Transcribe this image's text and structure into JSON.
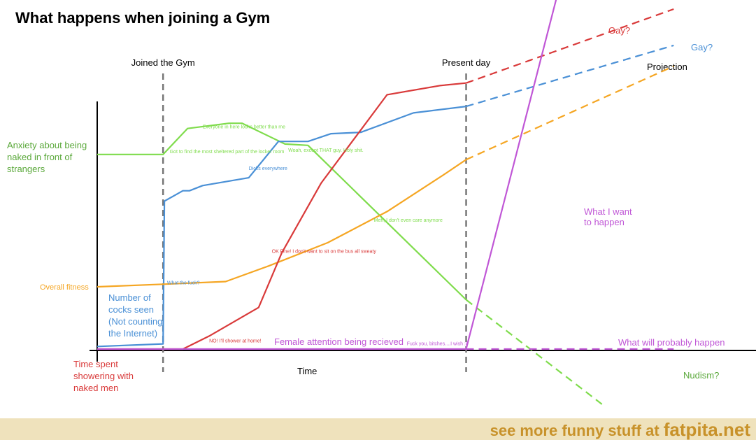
{
  "chart_data": {
    "type": "line",
    "title": "What happens when joining a Gym",
    "xlabel": "Time",
    "xlim": [
      0,
      10
    ],
    "ylim": [
      0,
      10
    ],
    "markers": [
      {
        "x": 1,
        "label": "Joined the Gym"
      },
      {
        "x": 5.6,
        "label": "Present day"
      }
    ],
    "projection_label": "Projection",
    "series": [
      {
        "name": "Anxiety about being naked in front of strangers",
        "color": "#7fdc4c",
        "points": [
          [
            0,
            7.5
          ],
          [
            1,
            7.5
          ],
          [
            1.37,
            8.5
          ],
          [
            2,
            8.7
          ],
          [
            2.2,
            8.7
          ],
          [
            2.85,
            7.9
          ],
          [
            3.2,
            7.85
          ],
          [
            5.6,
            1.9
          ]
        ],
        "projection": [
          [
            5.6,
            1.9
          ],
          [
            7.7,
            -2.2
          ]
        ],
        "projection_label": "Nudism?",
        "annotations": [
          {
            "x": 1.1,
            "y": 7.55,
            "text": "Got to find the most sheltered part of the locker room"
          },
          {
            "x": 1.6,
            "y": 8.5,
            "text": "Everyone in here looks better than me"
          },
          {
            "x": 2.9,
            "y": 7.6,
            "text": "Woah, except THAT guy. Holy shit."
          },
          {
            "x": 4.2,
            "y": 4.9,
            "text": "Meh, I don't even care anymore"
          }
        ]
      },
      {
        "name": "Number of cocks seen (Not counting the Internet)",
        "color": "#4a90d6",
        "points": [
          [
            0,
            0.1
          ],
          [
            1,
            0.2
          ],
          [
            1.02,
            5.7
          ],
          [
            1.3,
            6.1
          ],
          [
            1.4,
            6.1
          ],
          [
            1.6,
            6.3
          ],
          [
            2.3,
            6.6
          ],
          [
            2.75,
            8.0
          ],
          [
            3.2,
            8.0
          ],
          [
            3.55,
            8.3
          ],
          [
            4,
            8.35
          ],
          [
            4.8,
            9.1
          ],
          [
            5.6,
            9.35
          ]
        ],
        "projection": [
          [
            5.6,
            9.35
          ],
          [
            8.75,
            11.7
          ]
        ],
        "projection_label": "Gay?",
        "annotations": [
          {
            "x": 1.06,
            "y": 2.5,
            "text": "What the fuck?"
          },
          {
            "x": 2.3,
            "y": 6.9,
            "text": "Dicks everywhere"
          }
        ]
      },
      {
        "name": "Overall fitness",
        "color": "#f5a623",
        "points": [
          [
            0,
            2.4
          ],
          [
            1,
            2.5
          ],
          [
            1.95,
            2.6
          ],
          [
            2.6,
            3.2
          ],
          [
            3.5,
            4.1
          ],
          [
            4.4,
            5.3
          ],
          [
            5.25,
            6.7
          ],
          [
            5.6,
            7.3
          ]
        ],
        "projection": [
          [
            5.6,
            7.3
          ],
          [
            8.75,
            10.9
          ]
        ],
        "projection_label": ""
      },
      {
        "name": "Time spent showering with naked men",
        "color": "#d93a3a",
        "points": [
          [
            0,
            0
          ],
          [
            1.3,
            0
          ],
          [
            1.7,
            0.5
          ],
          [
            2.45,
            1.6
          ],
          [
            2.8,
            3.7
          ],
          [
            3.4,
            6.4
          ],
          [
            4.4,
            9.8
          ],
          [
            5.2,
            10.15
          ],
          [
            5.6,
            10.25
          ]
        ],
        "projection": [
          [
            5.6,
            10.25
          ],
          [
            8.75,
            13.1
          ]
        ],
        "projection_label": "Gay?",
        "annotations": [
          {
            "x": 1.7,
            "y": 0.25,
            "text": "NO! I'll shower at home!"
          },
          {
            "x": 2.65,
            "y": 3.7,
            "text": "OK Fine! I don't want to sit on the bus all sweaty"
          }
        ]
      },
      {
        "name": "Female attention being recieved",
        "color": "#c057d6",
        "points": [
          [
            0,
            0
          ],
          [
            5.6,
            0
          ]
        ],
        "projection": [
          [
            5.6,
            0
          ],
          [
            8.75,
            0
          ]
        ],
        "projection_label": "What will probably happen",
        "wish_projection": [
          [
            5.6,
            0
          ],
          [
            6.98,
            13.6
          ]
        ],
        "wish_label": "What I want to happen",
        "annotations": [
          {
            "x": 4.7,
            "y": 0.15,
            "text": "Fuck you, bitches."
          },
          {
            "x": 5.3,
            "y": 0.15,
            "text": "...I wish :("
          }
        ]
      }
    ]
  },
  "footer": {
    "prefix": "see more funny stuff at ",
    "site": "fatpita.net"
  }
}
